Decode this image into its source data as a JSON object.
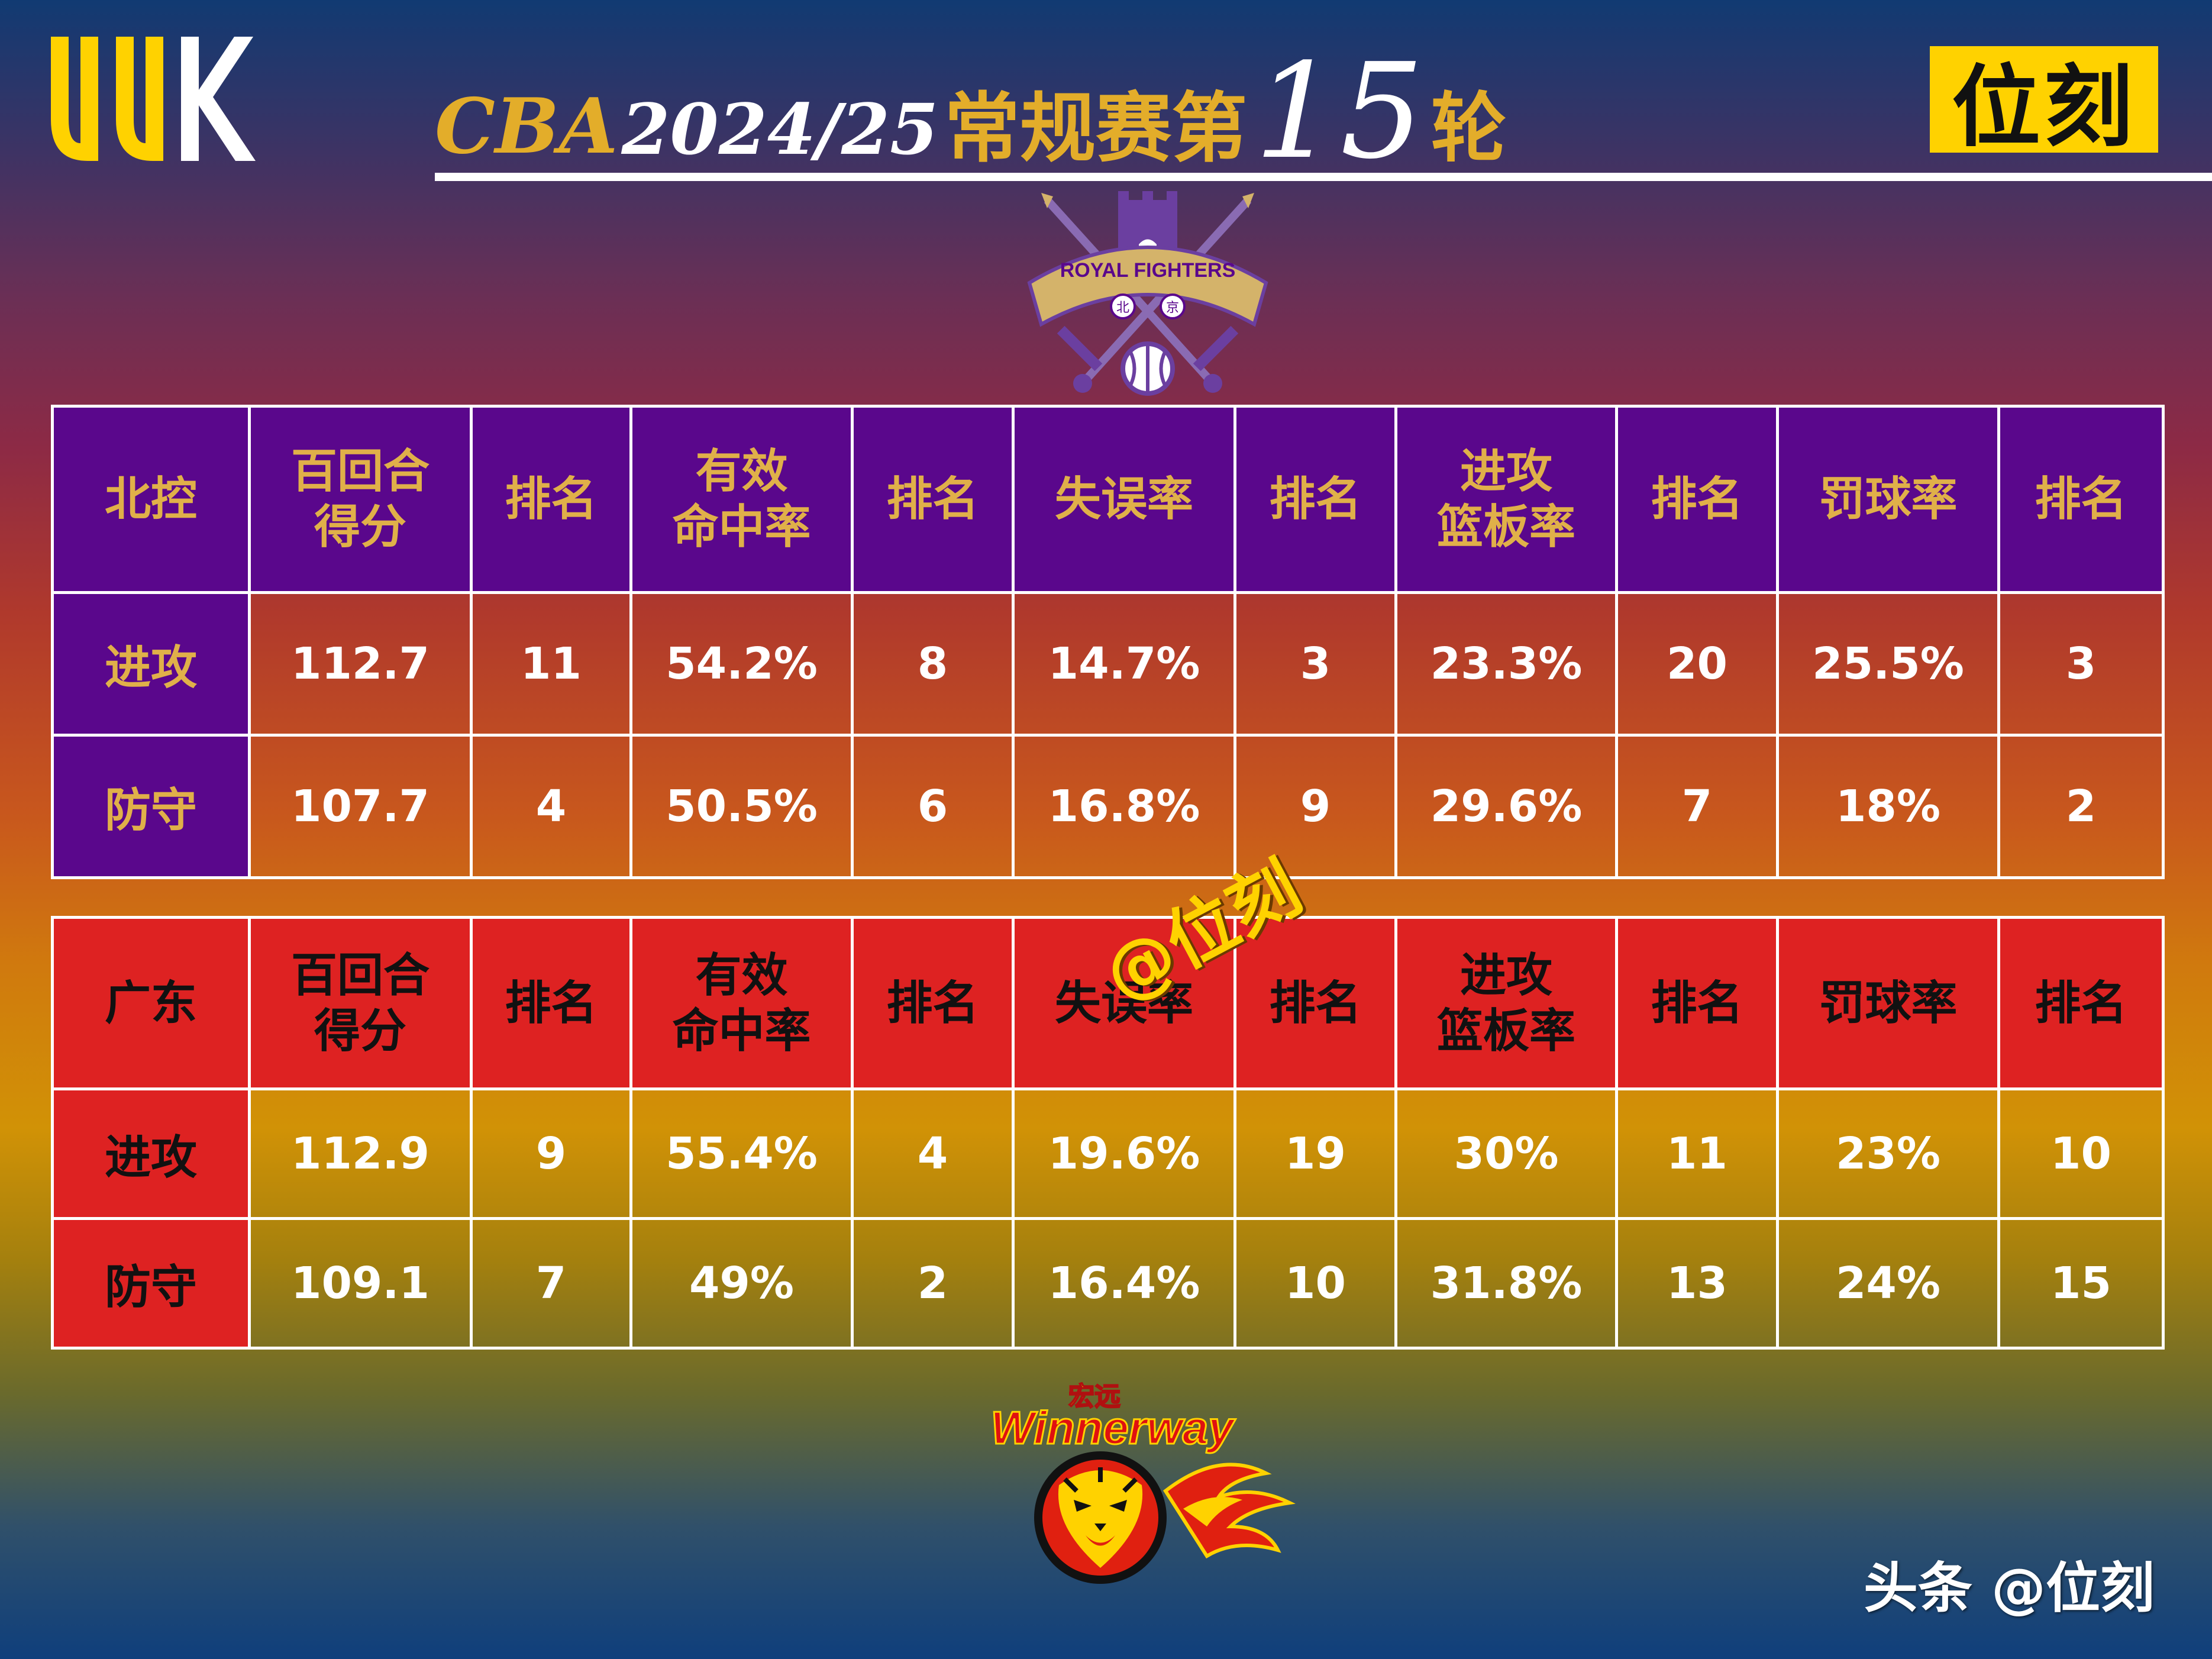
{
  "header": {
    "title_cba": "CBA",
    "title_season": "2024/25",
    "title_phase": "常规赛第",
    "title_round": "15",
    "title_unit": "轮",
    "brand_logo_text": "位刻",
    "uk_logo_text": "UUK"
  },
  "logos": {
    "beijing_text": "ROYAL FIGHTERS",
    "beijing_chars": [
      "北",
      "京"
    ],
    "guangdong_text_cn": "宏远",
    "guangdong_text_en": "Winnerway"
  },
  "tables": {
    "beijing": {
      "team": "北控",
      "headers": [
        "百回合\n得分",
        "排名",
        "有效\n命中率",
        "排名",
        "失误率",
        "排名",
        "进攻\n篮板率",
        "排名",
        "罚球率",
        "排名"
      ],
      "rows": [
        {
          "label": "进攻",
          "values": [
            "112.7",
            "11",
            "54.2%",
            "8",
            "14.7%",
            "3",
            "23.3%",
            "20",
            "25.5%",
            "3"
          ]
        },
        {
          "label": "防守",
          "values": [
            "107.7",
            "4",
            "50.5%",
            "6",
            "16.8%",
            "9",
            "29.6%",
            "7",
            "18%",
            "2"
          ]
        }
      ]
    },
    "guangdong": {
      "team": "广东",
      "headers": [
        "百回合\n得分",
        "排名",
        "有效\n命中率",
        "排名",
        "失误率",
        "排名",
        "进攻\n篮板率",
        "排名",
        "罚球率",
        "排名"
      ],
      "rows": [
        {
          "label": "进攻",
          "values": [
            "112.9",
            "9",
            "55.4%",
            "4",
            "19.6%",
            "19",
            "30%",
            "11",
            "23%",
            "10"
          ]
        },
        {
          "label": "防守",
          "values": [
            "109.1",
            "7",
            "49%",
            "2",
            "16.4%",
            "10",
            "31.8%",
            "13",
            "24%",
            "15"
          ]
        }
      ]
    }
  },
  "watermarks": {
    "center": "@位刻",
    "footer": "头条 @位刻"
  },
  "colors": {
    "beijing_purple": "#5a078c",
    "guangdong_red": "#de2222",
    "gold": "#e0b049",
    "brand_yellow": "#ffd200"
  }
}
